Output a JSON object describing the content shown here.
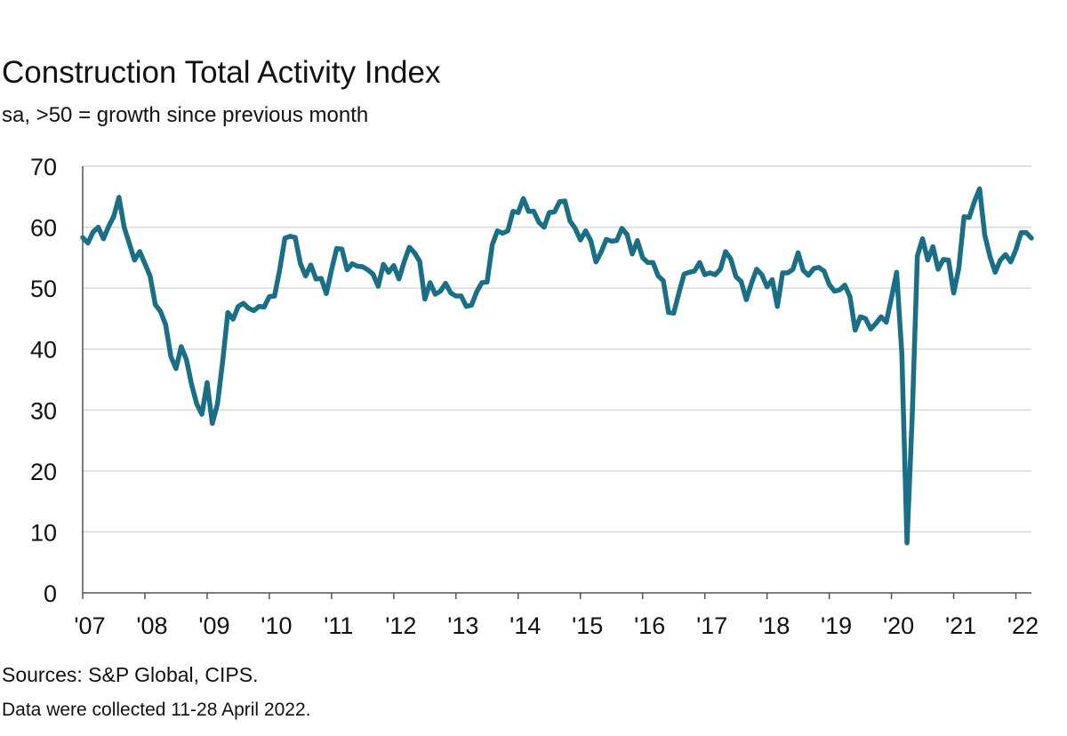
{
  "title": "Construction Total Activity Index",
  "subtitle": "sa, >50 = growth since previous month",
  "source": "Sources: S&P Global, CIPS.",
  "note": "Data were collected 11-28 April 2022.",
  "colors": {
    "series": "#1a6f87",
    "grid": "#d9d9d9",
    "axis": "#555555"
  },
  "chart_data": {
    "type": "line",
    "ylim": [
      0,
      70
    ],
    "yticks": [
      0,
      10,
      20,
      30,
      40,
      50,
      60,
      70
    ],
    "xlim": [
      "2007-01",
      "2022-04"
    ],
    "xtick_labels": [
      "'07",
      "'08",
      "'09",
      "'10",
      "'11",
      "'12",
      "'13",
      "'14",
      "'15",
      "'16",
      "'17",
      "'18",
      "'19",
      "'20",
      "'21",
      "'22"
    ],
    "xtick_dates": [
      "2007-01",
      "2008-01",
      "2009-01",
      "2010-01",
      "2011-01",
      "2012-01",
      "2013-01",
      "2014-01",
      "2015-01",
      "2016-01",
      "2017-01",
      "2018-01",
      "2019-01",
      "2020-01",
      "2021-01",
      "2022-01"
    ],
    "grid": true,
    "legend": "none",
    "series": [
      {
        "points": [
          [
            "2007-01",
            58.3
          ],
          [
            "2007-02",
            57.4
          ],
          [
            "2007-03",
            59.2
          ],
          [
            "2007-04",
            60.0
          ],
          [
            "2007-05",
            58.1
          ],
          [
            "2007-06",
            60.1
          ],
          [
            "2007-07",
            61.8
          ],
          [
            "2007-08",
            64.9
          ],
          [
            "2007-09",
            60.0
          ],
          [
            "2007-10",
            57.3
          ],
          [
            "2007-11",
            54.6
          ],
          [
            "2007-12",
            56.0
          ],
          [
            "2008-01",
            54.0
          ],
          [
            "2008-02",
            52.0
          ],
          [
            "2008-03",
            47.3
          ],
          [
            "2008-04",
            46.2
          ],
          [
            "2008-05",
            44.0
          ],
          [
            "2008-06",
            38.8
          ],
          [
            "2008-07",
            36.8
          ],
          [
            "2008-08",
            40.4
          ],
          [
            "2008-09",
            38.3
          ],
          [
            "2008-10",
            34.2
          ],
          [
            "2008-11",
            31.0
          ],
          [
            "2008-12",
            29.3
          ],
          [
            "2009-01",
            34.5
          ],
          [
            "2009-02",
            27.8
          ],
          [
            "2009-03",
            31.0
          ],
          [
            "2009-04",
            38.0
          ],
          [
            "2009-05",
            46.0
          ],
          [
            "2009-06",
            44.9
          ],
          [
            "2009-07",
            47.0
          ],
          [
            "2009-08",
            47.5
          ],
          [
            "2009-09",
            46.7
          ],
          [
            "2009-10",
            46.3
          ],
          [
            "2009-11",
            47.0
          ],
          [
            "2009-12",
            46.9
          ],
          [
            "2010-01",
            48.6
          ],
          [
            "2010-02",
            48.7
          ],
          [
            "2010-03",
            53.0
          ],
          [
            "2010-04",
            58.2
          ],
          [
            "2010-05",
            58.5
          ],
          [
            "2010-06",
            58.3
          ],
          [
            "2010-07",
            54.0
          ],
          [
            "2010-08",
            52.0
          ],
          [
            "2010-09",
            53.8
          ],
          [
            "2010-10",
            51.5
          ],
          [
            "2010-11",
            51.6
          ],
          [
            "2010-12",
            49.1
          ],
          [
            "2011-01",
            53.0
          ],
          [
            "2011-02",
            56.5
          ],
          [
            "2011-03",
            56.4
          ],
          [
            "2011-04",
            53.0
          ],
          [
            "2011-05",
            54.0
          ],
          [
            "2011-06",
            53.6
          ],
          [
            "2011-07",
            53.5
          ],
          [
            "2011-08",
            53.0
          ],
          [
            "2011-09",
            52.3
          ],
          [
            "2011-10",
            50.3
          ],
          [
            "2011-11",
            53.9
          ],
          [
            "2011-12",
            52.6
          ],
          [
            "2012-01",
            53.7
          ],
          [
            "2012-02",
            51.5
          ],
          [
            "2012-03",
            54.3
          ],
          [
            "2012-04",
            56.7
          ],
          [
            "2012-05",
            55.8
          ],
          [
            "2012-06",
            54.4
          ],
          [
            "2012-07",
            48.2
          ],
          [
            "2012-08",
            50.9
          ],
          [
            "2012-09",
            49.0
          ],
          [
            "2012-10",
            49.5
          ],
          [
            "2012-11",
            50.8
          ],
          [
            "2012-12",
            49.2
          ],
          [
            "2013-01",
            48.7
          ],
          [
            "2013-02",
            48.7
          ],
          [
            "2013-03",
            47.0
          ],
          [
            "2013-04",
            47.2
          ],
          [
            "2013-05",
            49.4
          ],
          [
            "2013-06",
            50.9
          ],
          [
            "2013-07",
            51.0
          ],
          [
            "2013-08",
            57.1
          ],
          [
            "2013-09",
            59.4
          ],
          [
            "2013-10",
            59.0
          ],
          [
            "2013-11",
            59.4
          ],
          [
            "2013-12",
            62.6
          ],
          [
            "2014-01",
            62.4
          ],
          [
            "2014-02",
            64.7
          ],
          [
            "2014-03",
            62.6
          ],
          [
            "2014-04",
            62.6
          ],
          [
            "2014-05",
            60.8
          ],
          [
            "2014-06",
            60.0
          ],
          [
            "2014-07",
            62.4
          ],
          [
            "2014-08",
            62.5
          ],
          [
            "2014-09",
            64.2
          ],
          [
            "2014-10",
            64.3
          ],
          [
            "2014-11",
            61.0
          ],
          [
            "2014-12",
            59.8
          ],
          [
            "2015-01",
            57.9
          ],
          [
            "2015-02",
            59.4
          ],
          [
            "2015-03",
            57.8
          ],
          [
            "2015-04",
            54.3
          ],
          [
            "2015-05",
            55.9
          ],
          [
            "2015-06",
            58.0
          ],
          [
            "2015-07",
            57.7
          ],
          [
            "2015-08",
            57.8
          ],
          [
            "2015-09",
            59.8
          ],
          [
            "2015-10",
            58.8
          ],
          [
            "2015-11",
            55.6
          ],
          [
            "2015-12",
            57.8
          ],
          [
            "2016-01",
            55.0
          ],
          [
            "2016-02",
            54.2
          ],
          [
            "2016-03",
            54.2
          ],
          [
            "2016-04",
            52.0
          ],
          [
            "2016-05",
            51.2
          ],
          [
            "2016-06",
            46.0
          ],
          [
            "2016-07",
            45.9
          ],
          [
            "2016-08",
            49.2
          ],
          [
            "2016-09",
            52.3
          ],
          [
            "2016-10",
            52.6
          ],
          [
            "2016-11",
            52.8
          ],
          [
            "2016-12",
            54.2
          ],
          [
            "2017-01",
            52.2
          ],
          [
            "2017-02",
            52.5
          ],
          [
            "2017-03",
            52.2
          ],
          [
            "2017-04",
            53.1
          ],
          [
            "2017-05",
            56.0
          ],
          [
            "2017-06",
            54.8
          ],
          [
            "2017-07",
            51.9
          ],
          [
            "2017-08",
            51.1
          ],
          [
            "2017-09",
            48.1
          ],
          [
            "2017-10",
            50.8
          ],
          [
            "2017-11",
            53.1
          ],
          [
            "2017-12",
            52.2
          ],
          [
            "2018-01",
            50.2
          ],
          [
            "2018-02",
            51.4
          ],
          [
            "2018-03",
            47.0
          ],
          [
            "2018-04",
            52.5
          ],
          [
            "2018-05",
            52.5
          ],
          [
            "2018-06",
            53.1
          ],
          [
            "2018-07",
            55.8
          ],
          [
            "2018-08",
            52.9
          ],
          [
            "2018-09",
            52.1
          ],
          [
            "2018-10",
            53.2
          ],
          [
            "2018-11",
            53.4
          ],
          [
            "2018-12",
            52.8
          ],
          [
            "2019-01",
            50.6
          ],
          [
            "2019-02",
            49.5
          ],
          [
            "2019-03",
            49.7
          ],
          [
            "2019-04",
            50.5
          ],
          [
            "2019-05",
            48.6
          ],
          [
            "2019-06",
            43.1
          ],
          [
            "2019-07",
            45.3
          ],
          [
            "2019-08",
            45.0
          ],
          [
            "2019-09",
            43.3
          ],
          [
            "2019-10",
            44.2
          ],
          [
            "2019-11",
            45.3
          ],
          [
            "2019-12",
            44.4
          ],
          [
            "2020-01",
            48.4
          ],
          [
            "2020-02",
            52.6
          ],
          [
            "2020-03",
            39.3
          ],
          [
            "2020-04",
            8.2
          ],
          [
            "2020-05",
            28.9
          ],
          [
            "2020-06",
            55.3
          ],
          [
            "2020-07",
            58.1
          ],
          [
            "2020-08",
            54.6
          ],
          [
            "2020-09",
            56.8
          ],
          [
            "2020-10",
            53.1
          ],
          [
            "2020-11",
            54.7
          ],
          [
            "2020-12",
            54.6
          ],
          [
            "2021-01",
            49.2
          ],
          [
            "2021-02",
            53.3
          ],
          [
            "2021-03",
            61.7
          ],
          [
            "2021-04",
            61.6
          ],
          [
            "2021-05",
            64.2
          ],
          [
            "2021-06",
            66.3
          ],
          [
            "2021-07",
            58.7
          ],
          [
            "2021-08",
            55.2
          ],
          [
            "2021-09",
            52.6
          ],
          [
            "2021-10",
            54.6
          ],
          [
            "2021-11",
            55.5
          ],
          [
            "2021-12",
            54.3
          ],
          [
            "2022-01",
            56.3
          ],
          [
            "2022-02",
            59.1
          ],
          [
            "2022-03",
            59.1
          ],
          [
            "2022-04",
            58.2
          ]
        ]
      }
    ]
  }
}
